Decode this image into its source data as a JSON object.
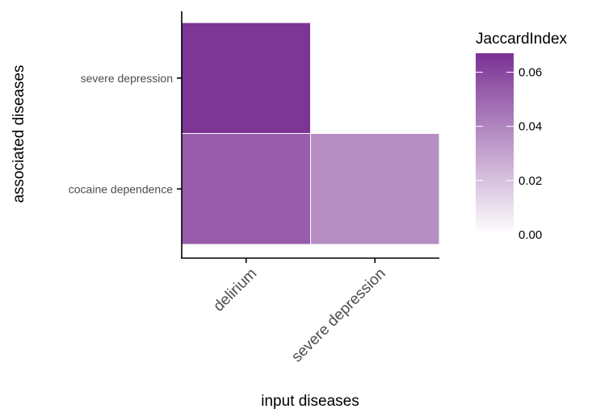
{
  "chart_data": {
    "type": "heatmap",
    "xlabel": "input diseases",
    "ylabel": "associated diseases",
    "x_categories": [
      "delirium",
      "severe depression"
    ],
    "y_categories": [
      "cocaine dependence",
      "severe depression"
    ],
    "cells": [
      {
        "x": "delirium",
        "y": "severe depression",
        "value": 0.066
      },
      {
        "x": "delirium",
        "y": "cocaine dependence",
        "value": 0.053
      },
      {
        "x": "severe depression",
        "y": "cocaine dependence",
        "value": 0.037
      }
    ],
    "legend": {
      "title": "JaccardIndex",
      "ticks": [
        0.0,
        0.02,
        0.04,
        0.06
      ],
      "tick_labels": [
        "0.00",
        "0.02",
        "0.04",
        "0.06"
      ],
      "min": 0,
      "max": 0.067,
      "low_color": "#ffffff",
      "high_color": "#7b3294"
    }
  }
}
